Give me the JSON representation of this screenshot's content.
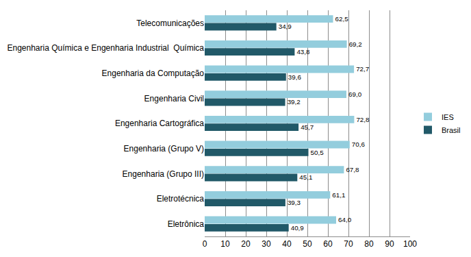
{
  "chart_data": {
    "type": "bar",
    "orientation": "horizontal",
    "categories": [
      "Eletrônica",
      "Eletrotécnica",
      "Engenharia (Grupo III)",
      "Engenharia (Grupo V)",
      "Engenharia Cartográfica",
      "Engenharia Civil",
      "Engenharia da Computação",
      "Engenharia Química e Engenharia Industrial  Química",
      "Telecomunicações"
    ],
    "series": [
      {
        "name": "Brasil",
        "color": "#215968",
        "values": [
          40.9,
          39.3,
          45.1,
          50.5,
          45.7,
          39.2,
          39.6,
          43.8,
          34.9
        ],
        "value_labels": [
          "40,9",
          "39,3",
          "45,1",
          "50,5",
          "45,7",
          "39,2",
          "39,6",
          "43,8",
          "34,9"
        ]
      },
      {
        "name": "IES",
        "color": "#93cddd",
        "values": [
          64.0,
          61.1,
          67.8,
          70.6,
          72.8,
          69.0,
          72.7,
          69.2,
          62.5
        ],
        "value_labels": [
          "64,0",
          "61,1",
          "67,8",
          "70,6",
          "72,8",
          "69,0",
          "72,7",
          "69,2",
          "62,5"
        ]
      }
    ],
    "xlim": [
      0,
      100
    ],
    "xticks": [
      0,
      10,
      20,
      30,
      40,
      50,
      60,
      70,
      80,
      90,
      100
    ],
    "grid": true,
    "data_labels": true,
    "legend": "right"
  }
}
